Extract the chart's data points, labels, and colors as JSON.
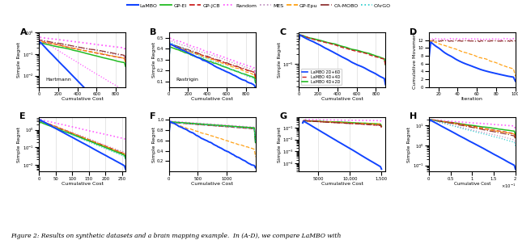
{
  "lambo_color": "#1144FF",
  "gpei_color": "#22BB22",
  "gpjcb_color": "#CC2222",
  "random_color": "#FF44FF",
  "mes_color": "#BB88BB",
  "gpepu_color": "#FF9900",
  "camobo_color": "#882222",
  "cargo_color": "#22CCCC",
  "lambo_4d4d_color": "#CC2222",
  "lambo_4d2d_color": "#22BB22",
  "legend_labels": [
    "LaMBO",
    "GP-EI",
    "GP-JCB",
    "Random",
    "MES",
    "GP-Epu",
    "CA-MOBO",
    "CArGO"
  ],
  "panel_labels": [
    "A",
    "B",
    "C",
    "D",
    "E",
    "F",
    "G",
    "H"
  ],
  "figure_caption": "Figure 2: Results on synthetic datasets and a brain mapping example.  In (A-D), we compare LaMBO with"
}
